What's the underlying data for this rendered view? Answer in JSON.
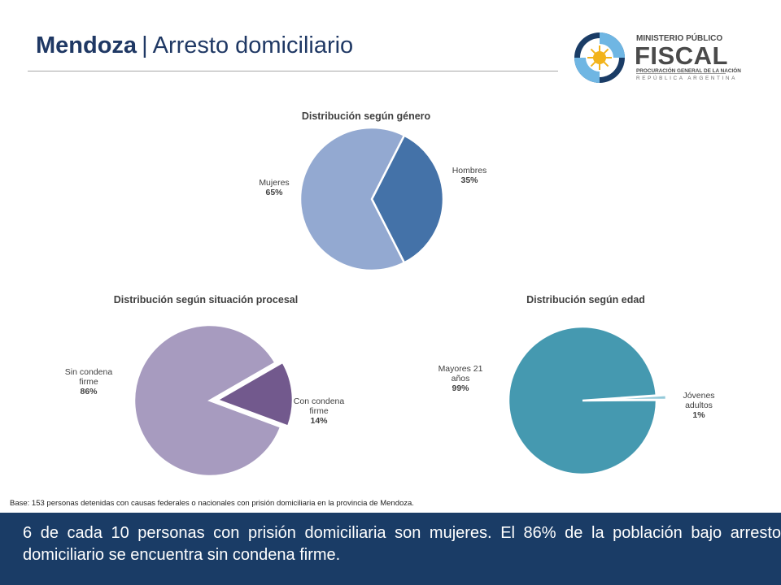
{
  "header": {
    "title_bold": "Mendoza",
    "title_sep": "|",
    "title_rest": "Arresto domiciliario"
  },
  "logo": {
    "line1": "MINISTERIO PÚBLICO",
    "line2": "FISCAL",
    "line3": "PROCURACIÓN GENERAL DE LA NACIÓN",
    "line4": "REPÚBLICA ARGENTINA"
  },
  "chart_data": [
    {
      "type": "pie",
      "title": "Distribución según género",
      "slices": [
        {
          "name": "Hombres",
          "value": 35,
          "pct_label": "35%",
          "color": "#4472a8"
        },
        {
          "name": "Mujeres",
          "value": 65,
          "pct_label": "65%",
          "color": "#93a9d1"
        }
      ]
    },
    {
      "type": "pie",
      "title": "Distribución según situación procesal",
      "slices": [
        {
          "name": "Con condena firme",
          "value": 14,
          "pct_label": "14%",
          "color": "#72598d"
        },
        {
          "name": "Sin condena firme",
          "value": 86,
          "pct_label": "86%",
          "color": "#a79bbf"
        }
      ]
    },
    {
      "type": "pie",
      "title": "Distribución según edad",
      "slices": [
        {
          "name": "Jóvenes adultos",
          "value": 1,
          "pct_label": "1%",
          "color": "#93c9d9"
        },
        {
          "name": "Mayores 21 años",
          "value": 99,
          "pct_label": "99%",
          "color": "#4599b0"
        }
      ]
    }
  ],
  "base_note": "Base: 153 personas detenidas con causas federales o nacionales con prisión domiciliaria en la provincia de Mendoza.",
  "footer_text": "6 de cada 10 personas con prisión domiciliaria son mujeres. El 86% de la población bajo arresto domiciliario se encuentra sin condena firme."
}
